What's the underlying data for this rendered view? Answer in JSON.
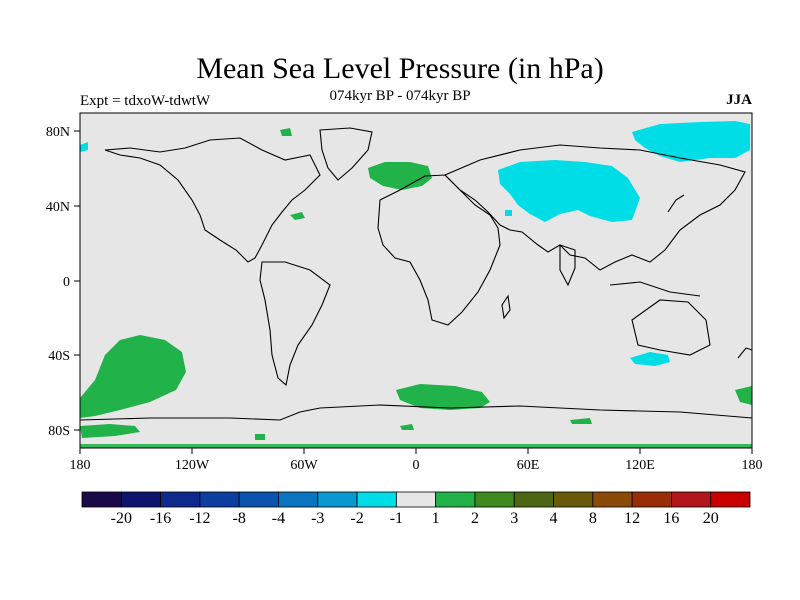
{
  "title": "Mean Sea Level Pressure (in hPa)",
  "subtitle_left": "Expt = tdxoW-tdwtW",
  "subtitle_center": "074kyr BP - 074kyr BP",
  "subtitle_right": "JJA",
  "map": {
    "ocean_land_fill": "#e6e6e6",
    "coast_color": "#000000",
    "x_ticks": [
      "180",
      "120W",
      "60W",
      "0",
      "60E",
      "120E",
      "180"
    ],
    "y_ticks": [
      "80N",
      "40N",
      "0",
      "40S",
      "80S"
    ]
  },
  "colorbar": {
    "colors": [
      "#1a0a4a",
      "#0c146e",
      "#0d2a8c",
      "#0b3e9e",
      "#0a54b0",
      "#0b74c0",
      "#0a98d0",
      "#00dde6",
      "#e6e6e6",
      "#21b24a",
      "#3d8a1e",
      "#4d6614",
      "#6b5a0c",
      "#8a4a08",
      "#9a2c08",
      "#b0161a",
      "#c80000"
    ],
    "labels": [
      "-20",
      "-16",
      "-12",
      "-8",
      "-4",
      "-3",
      "-2",
      "-1",
      "1",
      "2",
      "3",
      "4",
      "8",
      "12",
      "16",
      "20"
    ]
  }
}
